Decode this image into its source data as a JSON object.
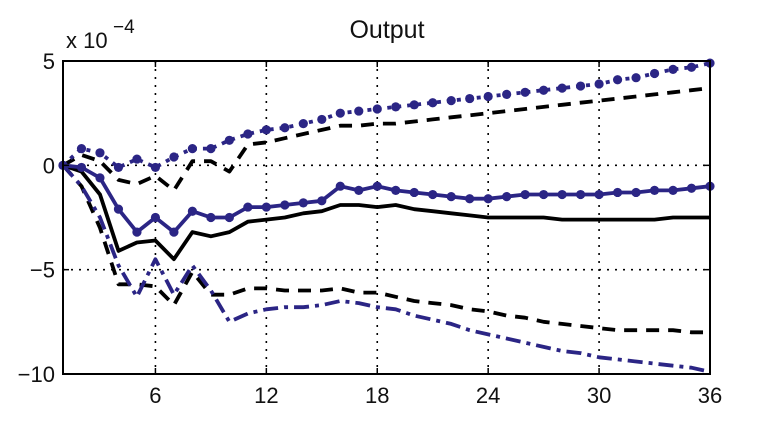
{
  "chart_data": {
    "type": "line",
    "title": "Output",
    "y_scale_label": "x 10",
    "y_scale_exponent": "−4",
    "xlim": [
      1,
      36
    ],
    "ylim": [
      -10,
      5
    ],
    "x_ticks": [
      6,
      12,
      18,
      24,
      30,
      36
    ],
    "x_tick_labels": [
      "6",
      "12",
      "18",
      "24",
      "30",
      "36"
    ],
    "y_ticks": [
      5,
      0,
      -5,
      -10
    ],
    "y_tick_labels": [
      "5",
      "0",
      "−5",
      "−10"
    ],
    "grid": true,
    "legend": "none",
    "x": [
      1,
      2,
      3,
      4,
      5,
      6,
      7,
      8,
      9,
      10,
      11,
      12,
      13,
      14,
      15,
      16,
      17,
      18,
      19,
      20,
      21,
      22,
      23,
      24,
      25,
      26,
      27,
      28,
      29,
      30,
      31,
      32,
      33,
      34,
      35,
      36
    ],
    "series": [
      {
        "color": "#000000",
        "style": "solid",
        "values": [
          0,
          -0.3,
          -1.4,
          -4.1,
          -3.7,
          -3.6,
          -4.5,
          -3.2,
          -3.4,
          -3.2,
          -2.7,
          -2.6,
          -2.5,
          -2.3,
          -2.2,
          -1.9,
          -1.9,
          -2.0,
          -1.9,
          -2.1,
          -2.2,
          -2.3,
          -2.4,
          -2.5,
          -2.5,
          -2.5,
          -2.5,
          -2.6,
          -2.6,
          -2.6,
          -2.6,
          -2.6,
          -2.6,
          -2.5,
          -2.5,
          -2.5
        ]
      },
      {
        "color": "#000000",
        "style": "dashed",
        "values": [
          0,
          0.5,
          0.2,
          -0.7,
          -0.9,
          -0.5,
          -1.2,
          0.2,
          0.2,
          -0.3,
          1.0,
          1.1,
          1.3,
          1.5,
          1.7,
          1.9,
          1.9,
          2.0,
          2.0,
          2.1,
          2.2,
          2.3,
          2.4,
          2.5,
          2.6,
          2.7,
          2.8,
          2.9,
          3.0,
          3.1,
          3.2,
          3.3,
          3.4,
          3.5,
          3.6,
          3.7
        ]
      },
      {
        "color": "#000000",
        "style": "dashed",
        "values": [
          0,
          -1.0,
          -3.0,
          -5.7,
          -5.7,
          -5.8,
          -6.7,
          -5.1,
          -6.2,
          -6.2,
          -5.9,
          -5.9,
          -6.0,
          -6.0,
          -6.0,
          -5.9,
          -6.1,
          -6.1,
          -6.3,
          -6.5,
          -6.6,
          -6.7,
          -6.9,
          -7.0,
          -7.2,
          -7.3,
          -7.5,
          -7.6,
          -7.7,
          -7.8,
          -7.9,
          -7.9,
          -7.9,
          -7.9,
          -8.0,
          -8.0
        ]
      },
      {
        "color": "#2b2585",
        "style": "solid-markers",
        "values": [
          0,
          -0.1,
          -0.6,
          -2.1,
          -3.2,
          -2.5,
          -3.2,
          -2.2,
          -2.5,
          -2.5,
          -2.0,
          -2.0,
          -1.9,
          -1.8,
          -1.7,
          -1.0,
          -1.2,
          -1.0,
          -1.2,
          -1.3,
          -1.4,
          -1.5,
          -1.6,
          -1.6,
          -1.5,
          -1.4,
          -1.4,
          -1.4,
          -1.4,
          -1.4,
          -1.3,
          -1.3,
          -1.2,
          -1.2,
          -1.1,
          -1.0
        ]
      },
      {
        "color": "#2b2585",
        "style": "dotted-markers",
        "values": [
          0,
          0.8,
          0.6,
          -0.1,
          0.3,
          -0.1,
          0.4,
          0.8,
          0.8,
          1.2,
          1.5,
          1.7,
          1.8,
          2.0,
          2.2,
          2.5,
          2.6,
          2.7,
          2.8,
          2.9,
          3.0,
          3.1,
          3.2,
          3.3,
          3.4,
          3.5,
          3.6,
          3.7,
          3.8,
          3.9,
          4.1,
          4.2,
          4.4,
          4.6,
          4.7,
          4.9
        ]
      },
      {
        "color": "#2b2585",
        "style": "dashdot",
        "values": [
          0,
          -1.0,
          -2.5,
          -4.8,
          -6.3,
          -4.5,
          -6.2,
          -4.8,
          -6.0,
          -7.5,
          -7.1,
          -6.9,
          -6.8,
          -6.8,
          -6.7,
          -6.5,
          -6.6,
          -6.8,
          -6.9,
          -7.2,
          -7.4,
          -7.6,
          -7.9,
          -8.1,
          -8.3,
          -8.5,
          -8.7,
          -8.9,
          -9.0,
          -9.2,
          -9.3,
          -9.4,
          -9.5,
          -9.6,
          -9.7,
          -9.9
        ]
      }
    ]
  }
}
